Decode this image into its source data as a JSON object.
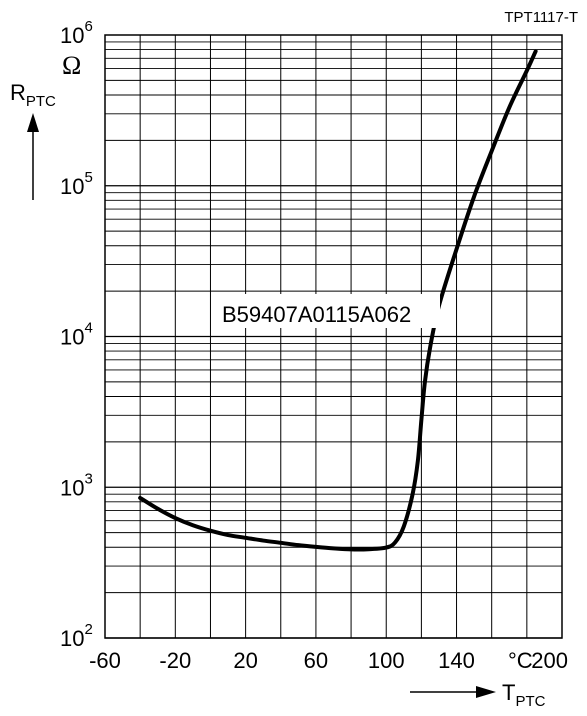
{
  "chart_data": {
    "type": "line",
    "title": "",
    "figure_code": "TPT1117-T",
    "y_axis": {
      "symbol_main": "R",
      "symbol_sub": "PTC",
      "unit": "Ω",
      "scale": "log",
      "range": [
        100,
        1000000
      ],
      "tick_labels": [
        {
          "value": 100,
          "base": "10",
          "exp": "2"
        },
        {
          "value": 1000,
          "base": "10",
          "exp": "3"
        },
        {
          "value": 10000,
          "base": "10",
          "exp": "4"
        },
        {
          "value": 100000,
          "base": "10",
          "exp": "5"
        },
        {
          "value": 1000000,
          "base": "10",
          "exp": "6"
        }
      ]
    },
    "x_axis": {
      "symbol_main": "T",
      "symbol_sub": "PTC",
      "unit": "°C",
      "scale": "linear",
      "range": [
        -60,
        200
      ],
      "tick_labels": [
        {
          "value": -60,
          "text": "-60"
        },
        {
          "value": -20,
          "text": "-20"
        },
        {
          "value": 20,
          "text": "20"
        },
        {
          "value": 60,
          "text": "60"
        },
        {
          "value": 100,
          "text": "100"
        },
        {
          "value": 140,
          "text": "140"
        },
        {
          "value": 200,
          "text": "200"
        }
      ],
      "grid_step": 20
    },
    "grid": true,
    "annotation": "B59407A0115A062",
    "series": [
      {
        "name": "B59407A0115A062",
        "color": "#000000",
        "points": [
          [
            -40,
            850
          ],
          [
            -30,
            720
          ],
          [
            -20,
            625
          ],
          [
            -10,
            560
          ],
          [
            0,
            515
          ],
          [
            10,
            482
          ],
          [
            20,
            462
          ],
          [
            30,
            443
          ],
          [
            40,
            428
          ],
          [
            50,
            413
          ],
          [
            60,
            402
          ],
          [
            70,
            393
          ],
          [
            80,
            387
          ],
          [
            90,
            388
          ],
          [
            100,
            398
          ],
          [
            105,
            430
          ],
          [
            110,
            550
          ],
          [
            115,
            900
          ],
          [
            118,
            1500
          ],
          [
            120,
            2800
          ],
          [
            122,
            5000
          ],
          [
            125,
            8500
          ],
          [
            130,
            16000
          ],
          [
            140,
            38000
          ],
          [
            150,
            85000
          ],
          [
            160,
            170000
          ],
          [
            170,
            330000
          ],
          [
            180,
            580000
          ],
          [
            185,
            780000
          ]
        ]
      }
    ]
  }
}
